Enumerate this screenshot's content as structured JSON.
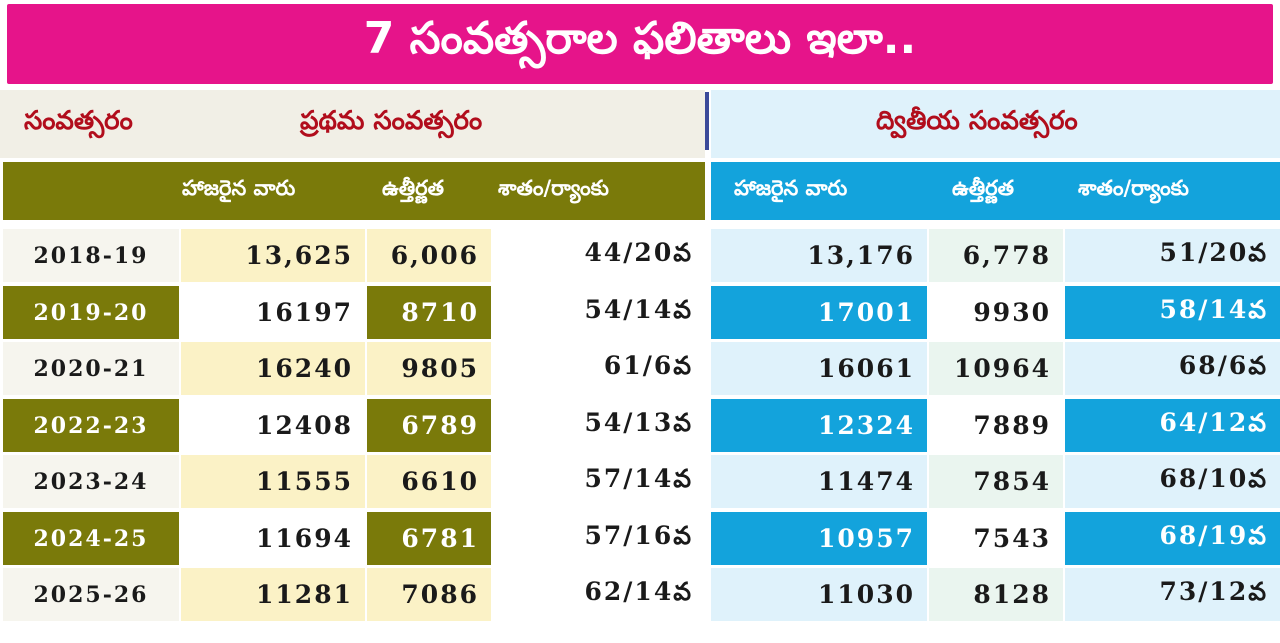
{
  "title": "7 సంవత్సరాల ఫలితాలు ఇలా..",
  "chart_data": {
    "type": "table",
    "title": "7 సంవత్సరాల ఫలితాలు ఇలా..",
    "row_header_label": "సంవత్సరం",
    "groups": [
      {
        "name": "ప్రథమ సంవత్సరం",
        "columns": [
          "హాజరైన వారు",
          "ఉత్తీర్ణత",
          "శాతం/ర్యాంకు"
        ]
      },
      {
        "name": "ద్వితీయ సంవత్సరం",
        "columns": [
          "హాజరైన వారు",
          "ఉత్తీర్ణత",
          "శాతం/ర్యాంకు"
        ]
      }
    ],
    "rows": [
      {
        "year": "2018-19",
        "first": [
          "13,625",
          "6,006",
          "44/20వ"
        ],
        "second": [
          "13,176",
          "6,778",
          "51/20వ"
        ]
      },
      {
        "year": "2019-20",
        "first": [
          "16197",
          "8710",
          "54/14వ"
        ],
        "second": [
          "17001",
          "9930",
          "58/14వ"
        ]
      },
      {
        "year": "2020-21",
        "first": [
          "16240",
          "9805",
          "61/6వ"
        ],
        "second": [
          "16061",
          "10964",
          "68/6వ"
        ]
      },
      {
        "year": "2022-23",
        "first": [
          "12408",
          "6789",
          "54/13వ"
        ],
        "second": [
          "12324",
          "7889",
          "64/12వ"
        ]
      },
      {
        "year": "2023-24",
        "first": [
          "11555",
          "6610",
          "57/14వ"
        ],
        "second": [
          "11474",
          "7854",
          "68/10వ"
        ]
      },
      {
        "year": "2024-25",
        "first": [
          "11694",
          "6781",
          "57/16వ"
        ],
        "second": [
          "10957",
          "7543",
          "68/19వ"
        ]
      },
      {
        "year": "2025-26",
        "first": [
          "11281",
          "7086",
          "62/14వ"
        ],
        "second": [
          "11030",
          "8128",
          "73/12వ"
        ]
      }
    ]
  },
  "colors": {
    "banner": "#e6148a",
    "olive": "#7a7a0a",
    "blue": "#13a3dc",
    "header_text": "#b10d1c"
  }
}
